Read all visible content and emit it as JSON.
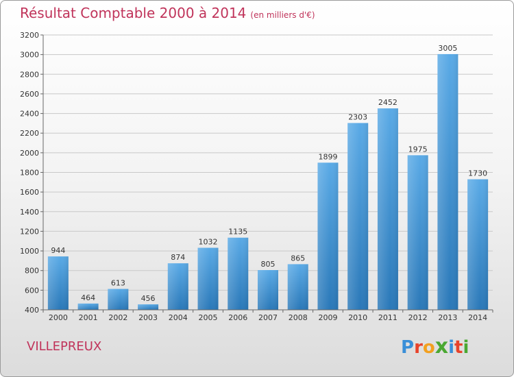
{
  "header": {
    "title": "Résultat Comptable 2000 à 2014",
    "subtitle": "(en milliers d'€)"
  },
  "footer": {
    "place": "VILLEPREUX",
    "logo_letters": [
      "P",
      "r",
      "o",
      "x",
      "i",
      "t",
      "i"
    ],
    "logo_colors": [
      "#3a8fd8",
      "#e8432b",
      "#f2a020",
      "#4aa832",
      "#3a8fd8",
      "#e8432b",
      "#4aa832"
    ]
  },
  "chart_data": {
    "type": "bar",
    "categories": [
      "2000",
      "2001",
      "2002",
      "2003",
      "2004",
      "2005",
      "2006",
      "2007",
      "2008",
      "2009",
      "2010",
      "2011",
      "2012",
      "2013",
      "2014"
    ],
    "values": [
      944,
      464,
      613,
      456,
      874,
      1032,
      1135,
      805,
      865,
      1899,
      2303,
      2452,
      1975,
      3005,
      1730
    ],
    "ylim": [
      400,
      3200
    ],
    "yticks": [
      400,
      600,
      800,
      1000,
      1200,
      1400,
      1600,
      1800,
      2000,
      2200,
      2400,
      2600,
      2800,
      3000,
      3200
    ],
    "grid": true,
    "bar_color_top": "#5aaae6",
    "bar_color_bottom": "#2a78b8"
  }
}
